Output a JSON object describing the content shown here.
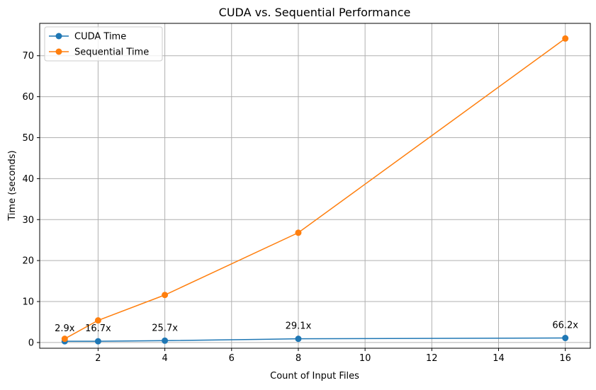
{
  "chart_data": {
    "type": "line",
    "title": "CUDA vs. Sequential Performance",
    "xlabel": "Count of Input Files",
    "ylabel": "Time (seconds)",
    "x": [
      1,
      2,
      4,
      8,
      16
    ],
    "series": [
      {
        "name": "CUDA Time",
        "color": "#1f77b4",
        "marker": "circle",
        "values": [
          0.3,
          0.3,
          0.45,
          0.9,
          1.1
        ]
      },
      {
        "name": "Sequential Time",
        "color": "#ff7f0e",
        "marker": "circle",
        "values": [
          0.9,
          5.4,
          11.6,
          26.8,
          74.2
        ]
      }
    ],
    "annotations": [
      {
        "x": 1,
        "label": "2.9x"
      },
      {
        "x": 2,
        "label": "16.7x"
      },
      {
        "x": 4,
        "label": "25.7x"
      },
      {
        "x": 8,
        "label": "29.1x"
      },
      {
        "x": 16,
        "label": "66.2x"
      }
    ],
    "xlim": [
      0.25,
      16.75
    ],
    "ylim": [
      -1.4,
      77.9
    ],
    "xticks": [
      2,
      4,
      6,
      8,
      10,
      12,
      14,
      16
    ],
    "yticks": [
      0,
      10,
      20,
      30,
      40,
      50,
      60,
      70
    ],
    "grid": true,
    "legend_position": "top-left"
  }
}
